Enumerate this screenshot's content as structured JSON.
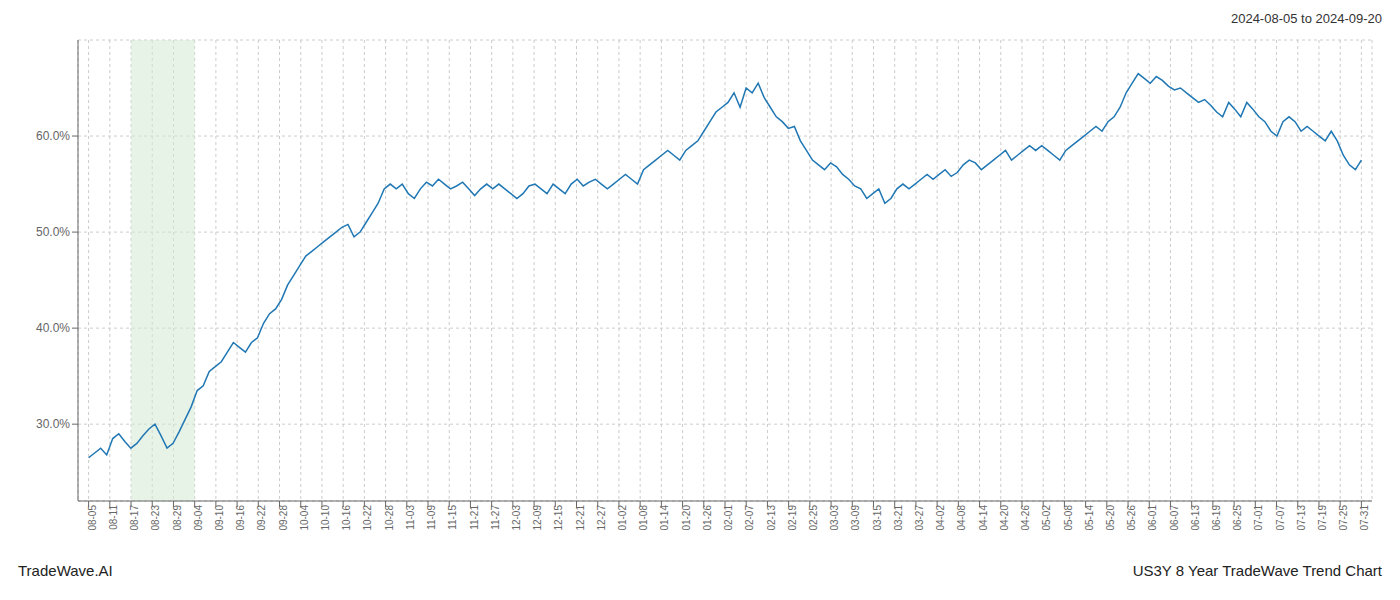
{
  "chart_data": {
    "type": "line",
    "title": "2024-08-05 to 2024-09-20",
    "annotations": [
      "TradeWave.AI",
      "US3Y 8 Year TradeWave Trend Chart"
    ],
    "color": "#1f77b4",
    "grid": true,
    "shaded_range": {
      "start": 2,
      "end": 5,
      "color": "#d6ead6"
    },
    "xlim": [
      -0.5,
      60.5
    ],
    "xticks": [
      {
        "value": 0,
        "label": "08-05"
      },
      {
        "value": 1,
        "label": "08-11"
      },
      {
        "value": 2,
        "label": "08-17"
      },
      {
        "value": 3,
        "label": "08-23"
      },
      {
        "value": 4,
        "label": "08-29"
      },
      {
        "value": 5,
        "label": "09-04"
      },
      {
        "value": 6,
        "label": "09-10"
      },
      {
        "value": 7,
        "label": "09-16"
      },
      {
        "value": 8,
        "label": "09-22"
      },
      {
        "value": 9,
        "label": "09-28"
      },
      {
        "value": 10,
        "label": "10-04"
      },
      {
        "value": 11,
        "label": "10-10"
      },
      {
        "value": 12,
        "label": "10-16"
      },
      {
        "value": 13,
        "label": "10-22"
      },
      {
        "value": 14,
        "label": "10-28"
      },
      {
        "value": 15,
        "label": "11-03"
      },
      {
        "value": 16,
        "label": "11-09"
      },
      {
        "value": 17,
        "label": "11-15"
      },
      {
        "value": 18,
        "label": "11-21"
      },
      {
        "value": 19,
        "label": "11-27"
      },
      {
        "value": 20,
        "label": "12-03"
      },
      {
        "value": 21,
        "label": "12-09"
      },
      {
        "value": 22,
        "label": "12-15"
      },
      {
        "value": 23,
        "label": "12-21"
      },
      {
        "value": 24,
        "label": "12-27"
      },
      {
        "value": 25,
        "label": "01-02"
      },
      {
        "value": 26,
        "label": "01-08"
      },
      {
        "value": 27,
        "label": "01-14"
      },
      {
        "value": 28,
        "label": "01-20"
      },
      {
        "value": 29,
        "label": "01-26"
      },
      {
        "value": 30,
        "label": "02-01"
      },
      {
        "value": 31,
        "label": "02-07"
      },
      {
        "value": 32,
        "label": "02-13"
      },
      {
        "value": 33,
        "label": "02-19"
      },
      {
        "value": 34,
        "label": "02-25"
      },
      {
        "value": 35,
        "label": "03-03"
      },
      {
        "value": 36,
        "label": "03-09"
      },
      {
        "value": 37,
        "label": "03-15"
      },
      {
        "value": 38,
        "label": "03-21"
      },
      {
        "value": 39,
        "label": "03-27"
      },
      {
        "value": 40,
        "label": "04-02"
      },
      {
        "value": 41,
        "label": "04-08"
      },
      {
        "value": 42,
        "label": "04-14"
      },
      {
        "value": 43,
        "label": "04-20"
      },
      {
        "value": 44,
        "label": "04-26"
      },
      {
        "value": 45,
        "label": "05-02"
      },
      {
        "value": 46,
        "label": "05-08"
      },
      {
        "value": 47,
        "label": "05-14"
      },
      {
        "value": 48,
        "label": "05-20"
      },
      {
        "value": 49,
        "label": "05-26"
      },
      {
        "value": 50,
        "label": "06-01"
      },
      {
        "value": 51,
        "label": "06-07"
      },
      {
        "value": 52,
        "label": "06-13"
      },
      {
        "value": 53,
        "label": "06-19"
      },
      {
        "value": 54,
        "label": "06-25"
      },
      {
        "value": 55,
        "label": "07-01"
      },
      {
        "value": 56,
        "label": "07-07"
      },
      {
        "value": 57,
        "label": "07-13"
      },
      {
        "value": 58,
        "label": "07-19"
      },
      {
        "value": 59,
        "label": "07-25"
      },
      {
        "value": 60,
        "label": "07-31"
      }
    ],
    "ylim": [
      22,
      70
    ],
    "yticks": [
      {
        "value": 30.0,
        "label": "30.0%"
      },
      {
        "value": 40.0,
        "label": "40.0%"
      },
      {
        "value": 50.0,
        "label": "50.0%"
      },
      {
        "value": 60.0,
        "label": "60.0%"
      }
    ],
    "values": [
      26.5,
      27.0,
      27.5,
      26.8,
      28.5,
      29.0,
      28.2,
      27.5,
      28.0,
      28.8,
      29.5,
      30.0,
      28.8,
      27.5,
      28.0,
      29.2,
      30.5,
      31.8,
      33.5,
      34.0,
      35.5,
      36.0,
      36.5,
      37.5,
      38.5,
      38.0,
      37.5,
      38.5,
      39.0,
      40.5,
      41.5,
      42.0,
      43.0,
      44.5,
      45.5,
      46.5,
      47.5,
      48.0,
      48.5,
      49.0,
      49.5,
      50.0,
      50.5,
      50.8,
      49.5,
      50.0,
      51.0,
      52.0,
      53.0,
      54.5,
      55.0,
      54.5,
      55.0,
      54.0,
      53.5,
      54.5,
      55.2,
      54.8,
      55.5,
      55.0,
      54.5,
      54.8,
      55.2,
      54.5,
      53.8,
      54.5,
      55.0,
      54.5,
      55.0,
      54.5,
      54.0,
      53.5,
      54.0,
      54.8,
      55.0,
      54.5,
      54.0,
      55.0,
      54.5,
      54.0,
      55.0,
      55.5,
      54.8,
      55.2,
      55.5,
      55.0,
      54.5,
      55.0,
      55.5,
      56.0,
      55.5,
      55.0,
      56.5,
      57.0,
      57.5,
      58.0,
      58.5,
      58.0,
      57.5,
      58.5,
      59.0,
      59.5,
      60.5,
      61.5,
      62.5,
      63.0,
      63.5,
      64.5,
      63.0,
      65.0,
      64.5,
      65.5,
      64.0,
      63.0,
      62.0,
      61.5,
      60.8,
      61.0,
      59.5,
      58.5,
      57.5,
      57.0,
      56.5,
      57.2,
      56.8,
      56.0,
      55.5,
      54.8,
      54.5,
      53.5,
      54.0,
      54.5,
      53.0,
      53.5,
      54.5,
      55.0,
      54.5,
      55.0,
      55.5,
      56.0,
      55.5,
      56.0,
      56.5,
      55.8,
      56.2,
      57.0,
      57.5,
      57.2,
      56.5,
      57.0,
      57.5,
      58.0,
      58.5,
      57.5,
      58.0,
      58.5,
      59.0,
      58.5,
      59.0,
      58.5,
      58.0,
      57.5,
      58.5,
      59.0,
      59.5,
      60.0,
      60.5,
      61.0,
      60.5,
      61.5,
      62.0,
      63.0,
      64.5,
      65.5,
      66.5,
      66.0,
      65.5,
      66.2,
      65.8,
      65.2,
      64.8,
      65.0,
      64.5,
      64.0,
      63.5,
      63.8,
      63.2,
      62.5,
      62.0,
      63.5,
      62.8,
      62.0,
      63.5,
      62.8,
      62.0,
      61.5,
      60.5,
      60.0,
      61.5,
      62.0,
      61.5,
      60.5,
      61.0,
      60.5,
      60.0,
      59.5,
      60.5,
      59.5,
      58.0,
      57.0,
      56.5,
      57.5
    ]
  }
}
